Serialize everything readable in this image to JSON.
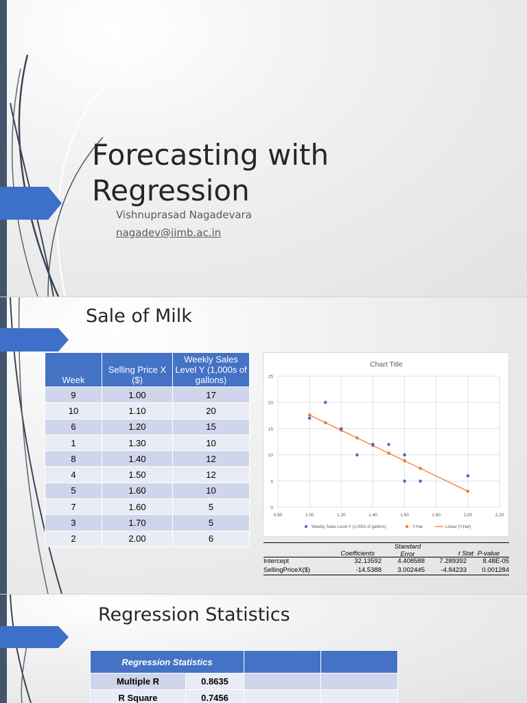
{
  "slide1": {
    "title": "Forecasting with Regression",
    "author": "Vishnuprasad Nagadevara",
    "email": "nagadev@iimb.ac.in"
  },
  "slide2": {
    "title": "Sale of Milk",
    "table": {
      "headers": [
        "Week",
        "Selling Price X ($)",
        "Weekly Sales Level Y (1,000s of gallons)"
      ],
      "rows": [
        [
          "9",
          "1.00",
          "17"
        ],
        [
          "10",
          "1.10",
          "20"
        ],
        [
          "6",
          "1.20",
          "15"
        ],
        [
          "1",
          "1.30",
          "10"
        ],
        [
          "8",
          "1.40",
          "12"
        ],
        [
          "4",
          "1.50",
          "12"
        ],
        [
          "5",
          "1.60",
          "10"
        ],
        [
          "7",
          "1.60",
          "5"
        ],
        [
          "3",
          "1.70",
          "5"
        ],
        [
          "2",
          "2.00",
          "6"
        ]
      ]
    },
    "regression_output": {
      "headers": [
        "Coefficients",
        "Standard Error",
        "t Stat",
        "P-value"
      ],
      "rows": [
        [
          "Intercept",
          "32.13592",
          "4.408588",
          "7.289392",
          "8.48E-05"
        ],
        [
          "SellingPriceX($)",
          "-14.5388",
          "3.002445",
          "-4.84233",
          "0.001284"
        ]
      ]
    }
  },
  "chart_data": {
    "type": "scatter",
    "title": "Chart Title",
    "xlim": [
      0.8,
      2.2
    ],
    "ylim": [
      0,
      25
    ],
    "x_ticks": [
      "0.80",
      "1.00",
      "1.20",
      "1.40",
      "1.60",
      "1.80",
      "2.00",
      "2.20"
    ],
    "y_ticks": [
      "0",
      "5",
      "10",
      "15",
      "20",
      "25"
    ],
    "grid": true,
    "legend_position": "bottom",
    "series": [
      {
        "name": "Weekly Sales Level Y (1,000s of gallons)",
        "color": "#4472c4",
        "x": [
          1.0,
          1.1,
          1.2,
          1.3,
          1.4,
          1.5,
          1.6,
          1.6,
          1.7,
          2.0
        ],
        "y": [
          17,
          20,
          15,
          10,
          12,
          12,
          10,
          5,
          5,
          6
        ]
      },
      {
        "name": "Y-Hat",
        "color": "#ed7d31",
        "x": [
          1.0,
          1.1,
          1.2,
          1.3,
          1.4,
          1.5,
          1.6,
          1.7,
          2.0
        ],
        "y": [
          17.6,
          16.14,
          14.69,
          13.24,
          11.78,
          10.33,
          8.87,
          7.42,
          3.06
        ]
      },
      {
        "name": "Linear (Y-Hat)",
        "color": "#ed7d31",
        "type": "line",
        "x": [
          1.0,
          2.0
        ],
        "y": [
          17.6,
          3.06
        ]
      }
    ]
  },
  "slide3": {
    "title": "Regression Statistics",
    "table": {
      "header": "Regression Statistics",
      "rows": [
        [
          "Multiple R",
          "0.8635"
        ],
        [
          "R Square",
          "0.7456"
        ]
      ]
    }
  },
  "colors": {
    "accent": "#3d70c8",
    "table_header": "#4472c4",
    "scatter": "#4472c4",
    "trend": "#ed7d31",
    "sidebar": "#44546a"
  }
}
